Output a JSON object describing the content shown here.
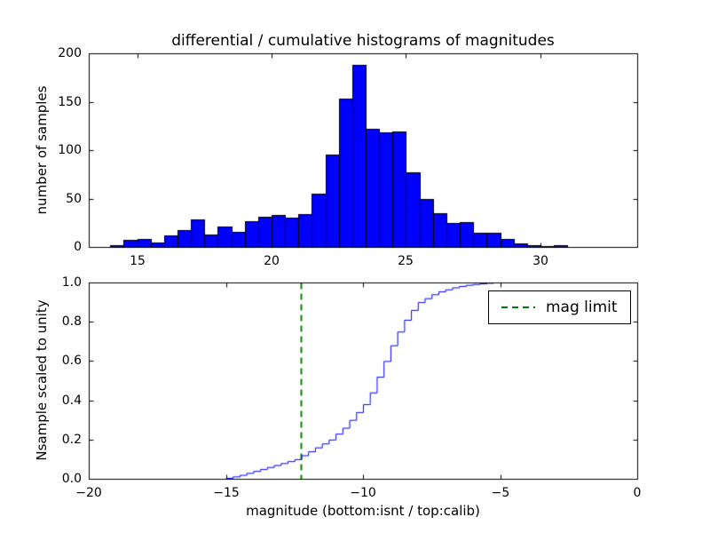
{
  "chart_data": [
    {
      "type": "bar",
      "title": "differential / cumulative histograms of magnitudes",
      "ylabel": "number of samples",
      "bar_color": "#0000ff",
      "bar_edge_color": "#000000",
      "bin_start": 14.0,
      "bin_width": 0.5,
      "counts": [
        2,
        7,
        8,
        5,
        12,
        17,
        28,
        13,
        21,
        16,
        27,
        31,
        33,
        30,
        34,
        55,
        95,
        153,
        188,
        122,
        118,
        119,
        77,
        50,
        35,
        25,
        26,
        15,
        15,
        8,
        4,
        2,
        1,
        2,
        0,
        0,
        0
      ],
      "xlim": [
        13.2,
        33.6
      ],
      "ylim": [
        0,
        200
      ],
      "xticks": [
        15,
        20,
        25,
        30
      ],
      "xticklabels": [
        "15",
        "20",
        "25",
        "30"
      ],
      "yticks": [
        0,
        50,
        100,
        150,
        200
      ],
      "yticklabels": [
        "0",
        "50",
        "100",
        "150",
        "200"
      ],
      "grid": false
    },
    {
      "type": "line",
      "style": "step",
      "xlabel": "magnitude (bottom:isnt / top:calib)",
      "ylabel": "Nsample scaled to unity",
      "line_color": "#0000ff",
      "x": [
        -15.25,
        -15.0,
        -14.75,
        -14.5,
        -14.25,
        -14.0,
        -13.75,
        -13.5,
        -13.25,
        -13.0,
        -12.75,
        -12.5,
        -12.25,
        -12.0,
        -11.75,
        -11.5,
        -11.25,
        -11.0,
        -10.75,
        -10.5,
        -10.25,
        -10.0,
        -9.75,
        -9.5,
        -9.25,
        -9.0,
        -8.75,
        -8.5,
        -8.25,
        -8.0,
        -7.75,
        -7.5,
        -7.25,
        -7.0,
        -6.75,
        -6.5,
        -6.25,
        -6.0,
        -5.75,
        -5.5,
        -5.25
      ],
      "y": [
        0.0,
        0.005,
        0.012,
        0.02,
        0.03,
        0.04,
        0.05,
        0.06,
        0.07,
        0.08,
        0.09,
        0.1,
        0.12,
        0.14,
        0.16,
        0.18,
        0.2,
        0.23,
        0.26,
        0.3,
        0.34,
        0.38,
        0.44,
        0.52,
        0.6,
        0.68,
        0.75,
        0.81,
        0.86,
        0.9,
        0.92,
        0.94,
        0.955,
        0.965,
        0.975,
        0.982,
        0.988,
        0.992,
        0.995,
        0.998,
        1.0
      ],
      "xlim": [
        -20,
        0
      ],
      "ylim": [
        0.0,
        1.0
      ],
      "xticks": [
        -20,
        -15,
        -10,
        -5,
        0
      ],
      "xticklabels": [
        "−20",
        "−15",
        "−10",
        "−5",
        "0"
      ],
      "yticks": [
        0.0,
        0.2,
        0.4,
        0.6,
        0.8,
        1.0
      ],
      "yticklabels": [
        "0.0",
        "0.2",
        "0.4",
        "0.6",
        "0.8",
        "1.0"
      ],
      "vline": {
        "x": -12.25,
        "color": "#008000",
        "linestyle": "dashed",
        "label": "mag limit"
      },
      "legend": {
        "label": "mag limit",
        "location": "upper right"
      },
      "grid": false
    }
  ]
}
